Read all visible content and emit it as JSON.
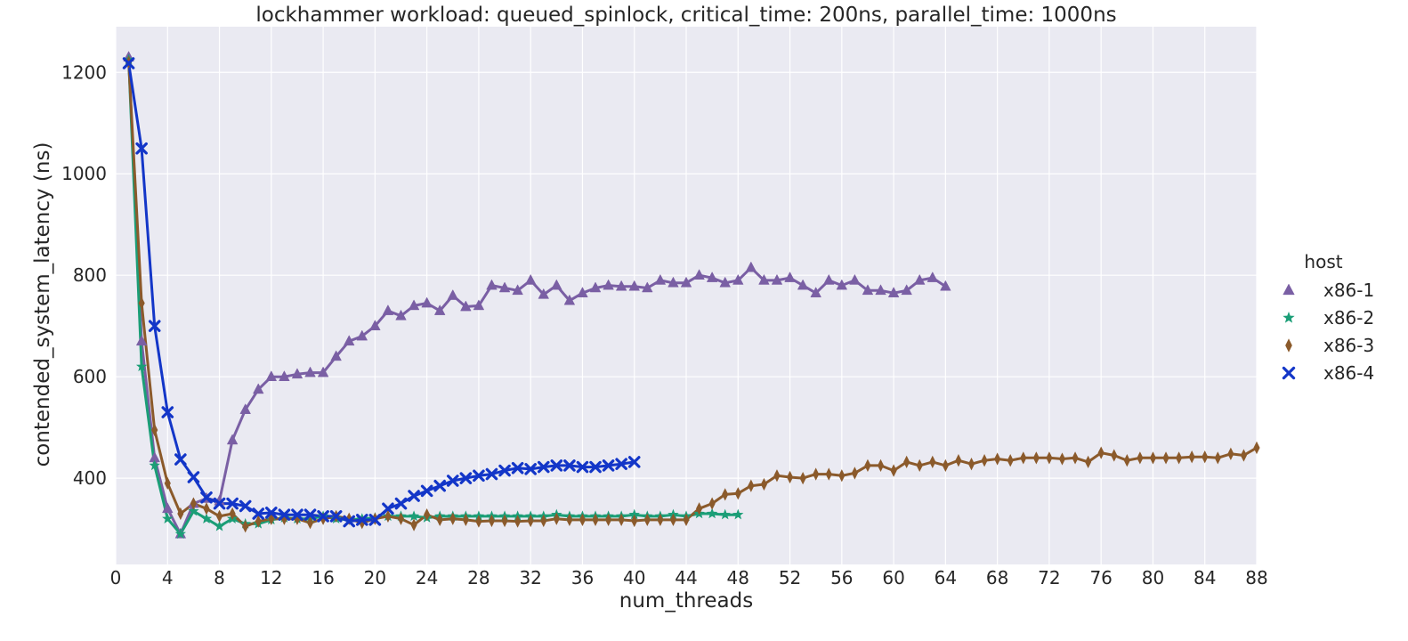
{
  "chart_data": {
    "type": "line",
    "title": "lockhammer workload: queued_spinlock, critical_time: 200ns, parallel_time: 1000ns",
    "xlabel": "num_threads",
    "ylabel": "contended_system_latency (ns)",
    "xlim": [
      0,
      88
    ],
    "ylim": [
      230,
      1290
    ],
    "xticks": [
      0,
      4,
      8,
      12,
      16,
      20,
      24,
      28,
      32,
      36,
      40,
      44,
      48,
      52,
      56,
      60,
      64,
      68,
      72,
      76,
      80,
      84,
      88
    ],
    "yticks": [
      400,
      600,
      800,
      1000,
      1200
    ],
    "grid": true,
    "background": "#eaeaf2",
    "legend": {
      "title": "host",
      "placement": "right"
    },
    "series": [
      {
        "name": "x86-1",
        "color": "#7a5fa4",
        "marker": "triangle",
        "x": [
          1,
          2,
          3,
          4,
          5,
          6,
          7,
          8,
          9,
          10,
          11,
          12,
          13,
          14,
          15,
          16,
          17,
          18,
          19,
          20,
          21,
          22,
          23,
          24,
          25,
          26,
          27,
          28,
          29,
          30,
          31,
          32,
          33,
          34,
          35,
          36,
          37,
          38,
          39,
          40,
          41,
          42,
          43,
          44,
          45,
          46,
          47,
          48,
          49,
          50,
          51,
          52,
          53,
          54,
          55,
          56,
          57,
          58,
          59,
          60,
          61,
          62,
          63,
          64
        ],
        "y": [
          1230,
          670,
          440,
          340,
          290,
          350,
          360,
          355,
          475,
          535,
          575,
          600,
          600,
          605,
          608,
          608,
          640,
          670,
          680,
          700,
          730,
          720,
          740,
          745,
          730,
          760,
          738,
          740,
          780,
          775,
          770,
          790,
          762,
          780,
          750,
          765,
          775,
          780,
          778,
          778,
          775,
          790,
          785,
          785,
          800,
          795,
          785,
          790,
          815,
          790,
          790,
          795,
          780,
          765,
          790,
          780,
          790,
          770,
          770,
          765,
          770,
          790,
          795,
          778
        ]
      },
      {
        "name": "x86-2",
        "color": "#1b9e77",
        "marker": "star",
        "x": [
          1,
          2,
          3,
          4,
          5,
          6,
          7,
          8,
          9,
          10,
          11,
          12,
          13,
          14,
          15,
          16,
          17,
          18,
          19,
          20,
          21,
          22,
          23,
          24,
          25,
          26,
          27,
          28,
          29,
          30,
          31,
          32,
          33,
          34,
          35,
          36,
          37,
          38,
          39,
          40,
          41,
          42,
          43,
          44,
          45,
          46,
          47,
          48
        ],
        "y": [
          1225,
          620,
          425,
          320,
          290,
          335,
          320,
          305,
          320,
          310,
          310,
          318,
          322,
          320,
          320,
          325,
          320,
          318,
          320,
          322,
          325,
          325,
          325,
          322,
          325,
          325,
          325,
          325,
          325,
          325,
          325,
          325,
          325,
          328,
          325,
          325,
          325,
          325,
          325,
          328,
          325,
          325,
          328,
          325,
          330,
          330,
          328,
          328
        ]
      },
      {
        "name": "x86-3",
        "color": "#8b5a2b",
        "marker": "diamond",
        "x": [
          1,
          2,
          3,
          4,
          5,
          6,
          7,
          8,
          9,
          10,
          11,
          12,
          13,
          14,
          15,
          16,
          17,
          18,
          19,
          20,
          21,
          22,
          23,
          24,
          25,
          26,
          27,
          28,
          29,
          30,
          31,
          32,
          33,
          34,
          35,
          36,
          37,
          38,
          39,
          40,
          41,
          42,
          43,
          44,
          45,
          46,
          47,
          48,
          49,
          50,
          51,
          52,
          53,
          54,
          55,
          56,
          57,
          58,
          59,
          60,
          61,
          62,
          63,
          64,
          65,
          66,
          67,
          68,
          69,
          70,
          71,
          72,
          73,
          74,
          75,
          76,
          77,
          78,
          79,
          80,
          81,
          82,
          83,
          84,
          85,
          86,
          87,
          88
        ],
        "y": [
          1220,
          745,
          495,
          390,
          330,
          350,
          340,
          325,
          330,
          305,
          315,
          320,
          320,
          320,
          312,
          320,
          325,
          320,
          312,
          320,
          325,
          320,
          308,
          328,
          318,
          320,
          318,
          315,
          316,
          316,
          315,
          316,
          316,
          320,
          318,
          318,
          318,
          318,
          318,
          316,
          318,
          318,
          318,
          318,
          340,
          350,
          368,
          370,
          385,
          388,
          405,
          402,
          400,
          408,
          408,
          405,
          410,
          425,
          425,
          415,
          432,
          425,
          432,
          425,
          435,
          428,
          435,
          438,
          435,
          440,
          440,
          440,
          438,
          440,
          432,
          450,
          445,
          435,
          440,
          440,
          440,
          440,
          442,
          442,
          440,
          448,
          445,
          460
        ]
      },
      {
        "name": "x86-4",
        "color": "#1336c8",
        "marker": "x",
        "x": [
          1,
          2,
          3,
          4,
          5,
          6,
          7,
          8,
          9,
          10,
          11,
          12,
          13,
          14,
          15,
          16,
          17,
          18,
          19,
          20,
          21,
          22,
          23,
          24,
          25,
          26,
          27,
          28,
          29,
          30,
          31,
          32,
          33,
          34,
          35,
          36,
          37,
          38,
          39,
          40
        ],
        "y": [
          1218,
          1050,
          700,
          530,
          437,
          402,
          362,
          350,
          350,
          345,
          330,
          332,
          328,
          328,
          328,
          325,
          325,
          315,
          318,
          318,
          340,
          350,
          365,
          375,
          385,
          395,
          400,
          405,
          408,
          415,
          420,
          418,
          422,
          425,
          425,
          422,
          422,
          425,
          428,
          432
        ]
      }
    ]
  }
}
